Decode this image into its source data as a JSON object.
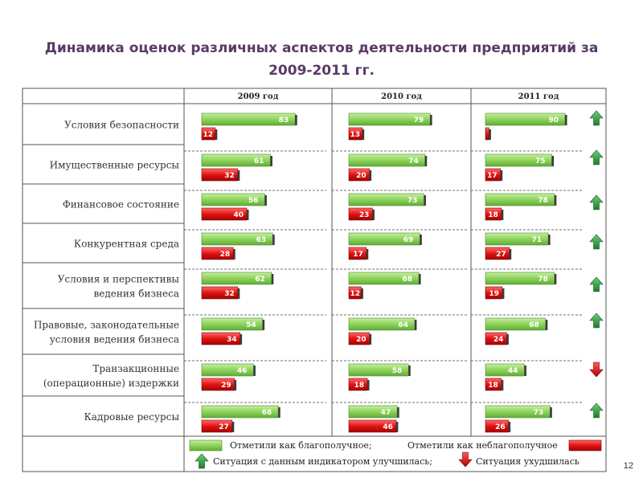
{
  "slide": {
    "title_line1": "Динамика оценок различных аспектов деятельности предприятий за",
    "title_line2": "2009-2011 гг.",
    "page_number": "12"
  },
  "chart_data": {
    "type": "bar",
    "title": "Динамика оценок различных аспектов деятельности предприятий за 2009-2011 гг.",
    "years": [
      "2009 год",
      "2010 год",
      "2011 год"
    ],
    "categories": [
      [
        "Условия безопасности"
      ],
      [
        "Имущественные ресурсы"
      ],
      [
        "Финансовое состояние"
      ],
      [
        "Конкурентная среда"
      ],
      [
        "Условия и перспективы",
        "ведения бизнеса"
      ],
      [
        "Правовые, законодательные",
        "условия ведения бизнеса"
      ],
      [
        "Транзакционные",
        "(операционные) издержки"
      ],
      [
        "Кадровые ресурсы"
      ]
    ],
    "series": [
      {
        "name": "Отметили как благополучное;",
        "color": "#8fd35c",
        "values": [
          [
            83,
            79,
            90
          ],
          [
            61,
            74,
            75
          ],
          [
            56,
            73,
            78
          ],
          [
            63,
            69,
            71
          ],
          [
            62,
            68,
            78
          ],
          [
            54,
            64,
            68
          ],
          [
            46,
            58,
            44
          ],
          [
            68,
            47,
            73
          ]
        ]
      },
      {
        "name": "Отметили как неблагополучное",
        "color": "#e01414",
        "values": [
          [
            12,
            13,
            4
          ],
          [
            32,
            20,
            17
          ],
          [
            40,
            23,
            18
          ],
          [
            28,
            17,
            27
          ],
          [
            32,
            12,
            19
          ],
          [
            34,
            20,
            24
          ],
          [
            29,
            18,
            18
          ],
          [
            27,
            46,
            26
          ]
        ]
      }
    ],
    "trend_2011": [
      "up",
      "up",
      "up",
      "up",
      "up",
      "up",
      "down",
      "up"
    ],
    "legend": {
      "improved": "Ситуация с данным индикатором улучшилась;",
      "worsened": "Ситуация ухудшилась"
    },
    "colors": {
      "up": "#2e8b3a",
      "down": "#d41c1c"
    }
  }
}
